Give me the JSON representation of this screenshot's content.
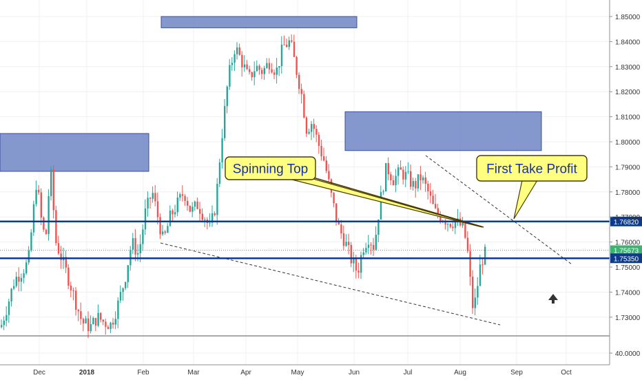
{
  "chart_data": {
    "type": "candlestick",
    "instrument_scale": "log",
    "grid": true,
    "y_ticks": [
      "1.85000",
      "1.84000",
      "1.83000",
      "1.82000",
      "1.81000",
      "1.80000",
      "1.79000",
      "1.78000",
      "1.77000",
      "1.76000",
      "1.75000",
      "1.74000",
      "1.73000",
      "40.0000"
    ],
    "x_ticks": [
      "Dec",
      "2018",
      "Feb",
      "Mar",
      "Apr",
      "May",
      "Jun",
      "Jul",
      "Aug",
      "Sep",
      "Oct"
    ],
    "price_labels": [
      {
        "value": "1.76820",
        "color": "#0d3a8a"
      },
      {
        "value": "1.75673",
        "color": "#3cb371"
      },
      {
        "value": "1.75350",
        "color": "#0d3a8a"
      }
    ],
    "horizontal_levels": [
      1.7682,
      1.7535
    ],
    "current_price": 1.75673,
    "annotations": [
      {
        "text": "Spinning Top"
      },
      {
        "text": "First Take Profit"
      }
    ],
    "zones": [
      {
        "price_top": 1.85,
        "price_bottom": 1.8455,
        "x_start": "Mar",
        "x_end": "May"
      },
      {
        "price_top": 1.812,
        "price_bottom": 1.7965,
        "x_start": "May",
        "x_end": "Sep"
      },
      {
        "price_top": 1.8033,
        "price_bottom": 1.7882,
        "x_start": "Nov",
        "x_end": "Feb"
      }
    ],
    "colors": {
      "up": "#26a69a",
      "down": "#ef5350",
      "level": "#0d3a8a",
      "zone": "#6f86c6",
      "callout": "#ffff80"
    }
  }
}
